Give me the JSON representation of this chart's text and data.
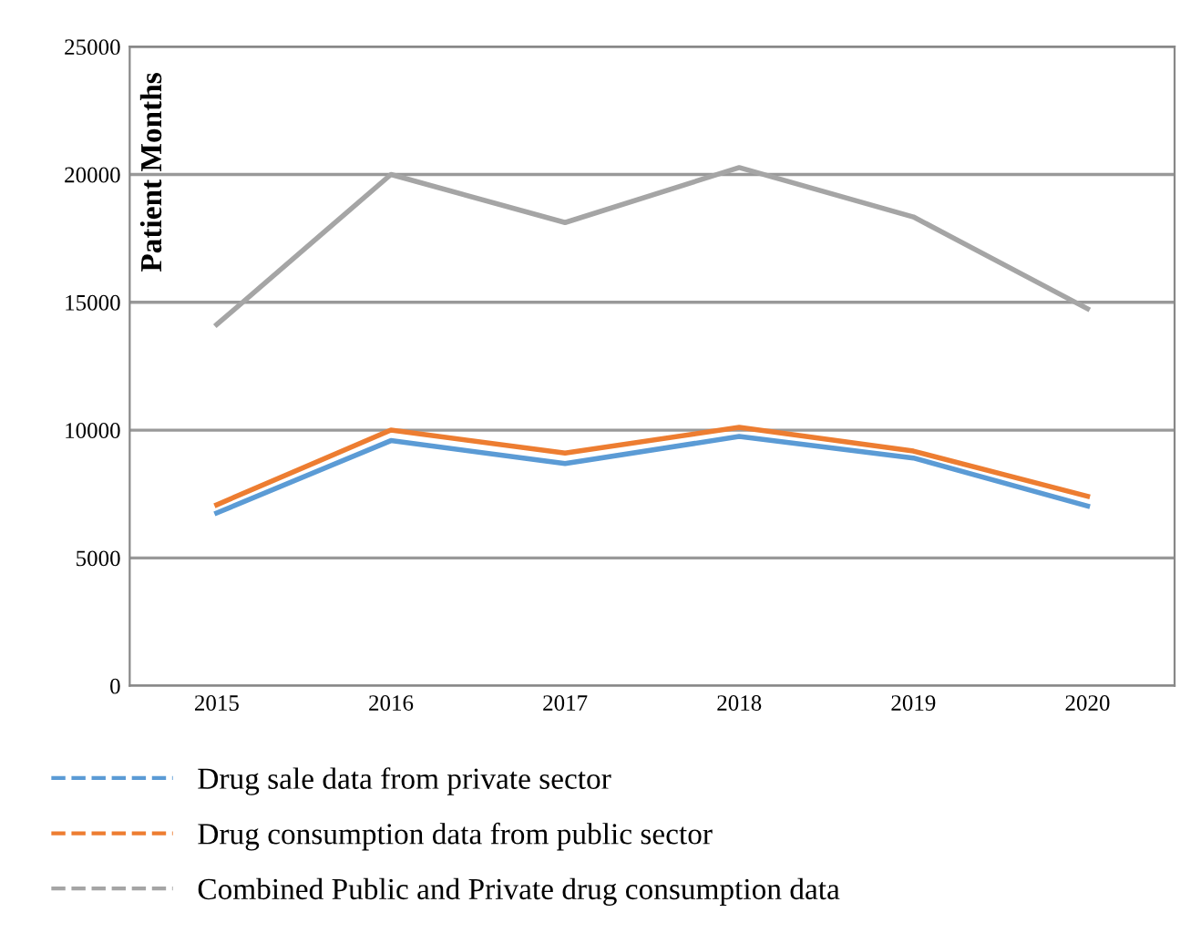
{
  "chart_data": {
    "type": "line",
    "ylabel": "Patient Months",
    "categories": [
      "2015",
      "2016",
      "2017",
      "2018",
      "2019",
      "2020"
    ],
    "series": [
      {
        "name": "Drug sale data from private sector",
        "color": "#5b9bd5",
        "values": [
          6760,
          9590,
          8690,
          9750,
          8910,
          7030
        ]
      },
      {
        "name": "Drug consumption data from public sector",
        "color": "#ed7d31",
        "values": [
          7080,
          10000,
          9100,
          10110,
          9180,
          7410
        ]
      },
      {
        "name": "Combined Public and Private drug consumption data",
        "color": "#a5a5a5",
        "values": [
          14130,
          20000,
          18120,
          20270,
          18340,
          14750
        ]
      }
    ],
    "ylim": [
      0,
      25000
    ],
    "yticks": [
      0,
      5000,
      10000,
      15000,
      20000,
      25000
    ],
    "grid": "y",
    "legend": "bottom",
    "marker": "none",
    "line_style": "solid"
  }
}
